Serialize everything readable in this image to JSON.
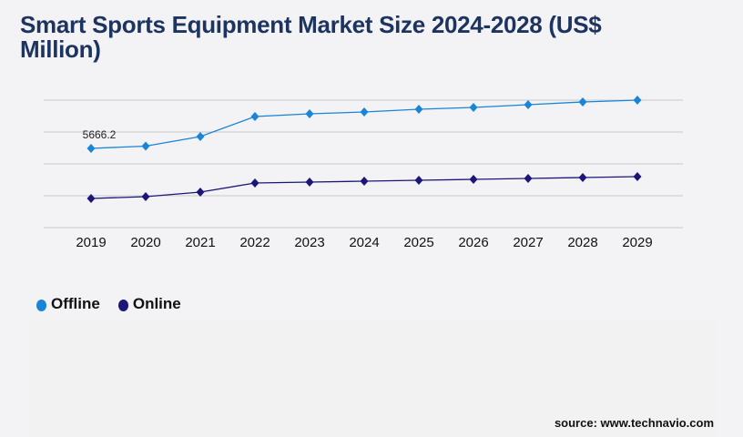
{
  "chart_data": {
    "type": "line",
    "title": "Smart Sports Equipment Market Size 2024-2028 (US$ Million)",
    "xlabel": "",
    "ylabel": "",
    "categories": [
      "2019",
      "2020",
      "2021",
      "2022",
      "2023",
      "2024",
      "2025",
      "2026",
      "2027",
      "2028",
      "2029"
    ],
    "series": [
      {
        "name": "Offline",
        "color": "#1a84d6",
        "values": [
          5666.2,
          5829,
          6513,
          7946,
          8141,
          8271,
          8467,
          8597,
          8792,
          8988,
          9118
        ]
      },
      {
        "name": "Online",
        "color": "#1c1777",
        "values": [
          2084,
          2214,
          2540,
          3191,
          3257,
          3322,
          3387,
          3452,
          3517,
          3582,
          3647
        ]
      }
    ],
    "data_labels": [
      {
        "series": "Offline",
        "category": "2019",
        "text": "5666.2"
      }
    ],
    "ylim": [
      0,
      9118
    ],
    "grid": true,
    "legend_placement": "bottom-left"
  },
  "source": "source: www.technavio.com"
}
